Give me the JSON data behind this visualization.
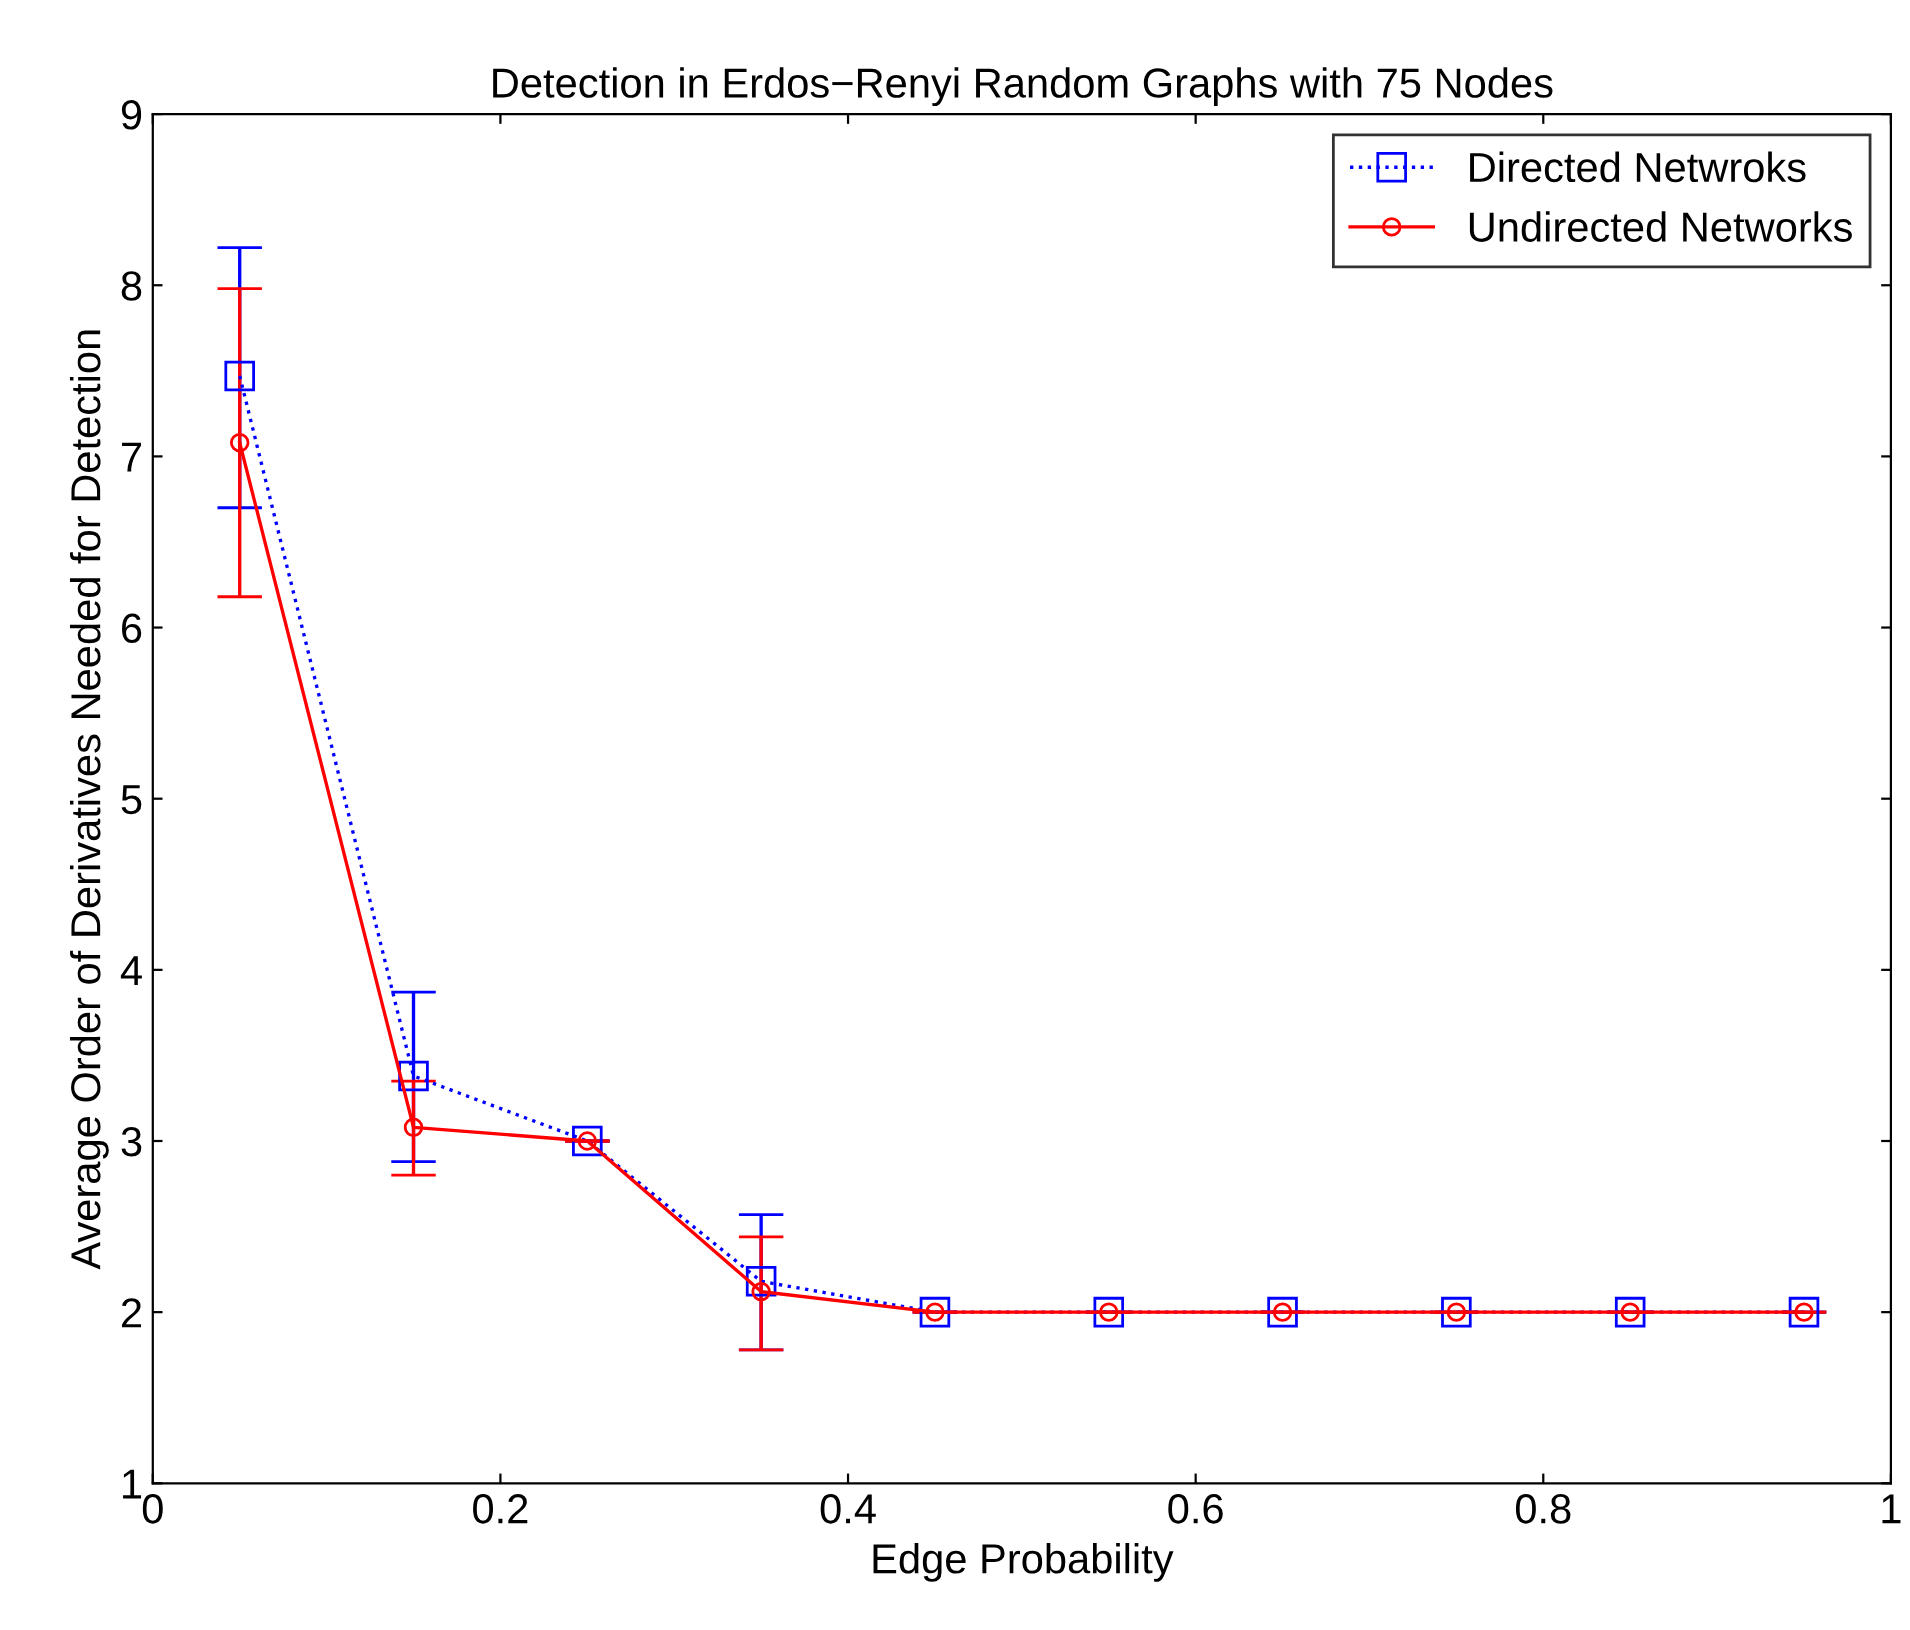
{
  "chart_data": {
    "type": "line",
    "title": "Detection in Erdos−Renyi Random Graphs with 75 Nodes",
    "xlabel": "Edge Probability",
    "ylabel": "Average Order of Derivatives Needed for Detection",
    "x": [
      0.05,
      0.15,
      0.25,
      0.35,
      0.45,
      0.55,
      0.65,
      0.75,
      0.85,
      0.95
    ],
    "series": [
      {
        "name": "Directed Netwroks",
        "color": "#0000ff",
        "marker": "square",
        "line_style": "dotted",
        "values": [
          7.47,
          3.38,
          3.0,
          2.18,
          2.0,
          2.0,
          2.0,
          2.0,
          2.0,
          2.0
        ],
        "errors": [
          [
            6.7,
            8.22
          ],
          [
            2.88,
            3.87
          ],
          0,
          [
            1.78,
            2.57
          ],
          0,
          0,
          0,
          0,
          0,
          0
        ]
      },
      {
        "name": "Undirected Networks",
        "color": "#ff0000",
        "marker": "circle",
        "line_style": "solid",
        "values": [
          7.08,
          3.08,
          3.0,
          2.12,
          2.0,
          2.0,
          2.0,
          2.0,
          2.0,
          2.0
        ],
        "errors": [
          [
            6.18,
            7.98
          ],
          [
            2.8,
            3.35
          ],
          0,
          [
            1.78,
            2.44
          ],
          0,
          0,
          0,
          0,
          0,
          0
        ]
      }
    ],
    "xlim": [
      0,
      1
    ],
    "xticks": [
      0,
      0.2,
      0.4,
      0.6,
      0.8,
      1
    ],
    "ylim": [
      1,
      9
    ],
    "yticks": [
      1,
      2,
      3,
      4,
      5,
      6,
      7,
      8,
      9
    ],
    "grid": false,
    "legend": "top right"
  }
}
